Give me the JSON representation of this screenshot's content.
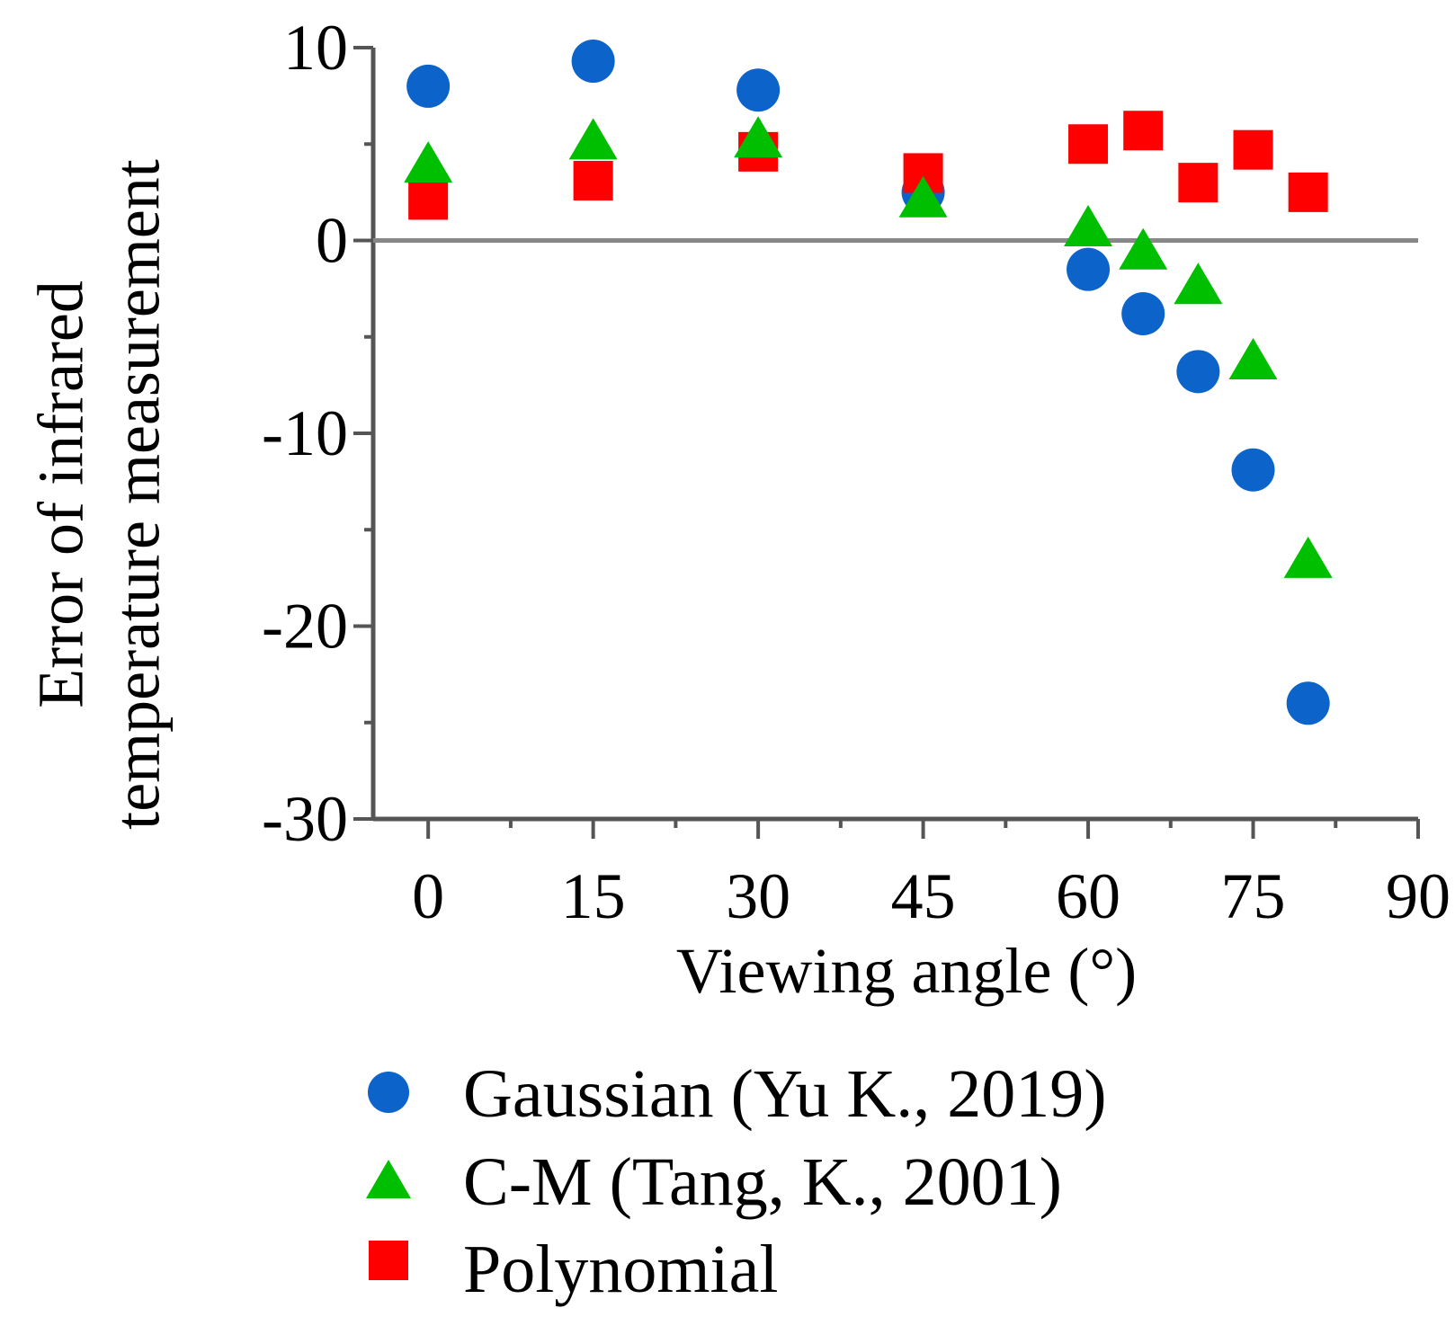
{
  "chart_data": {
    "type": "scatter",
    "title": "",
    "xlabel": "Viewing angle (°)",
    "ylabel_lines": [
      "Error of infrared",
      "temperature measurement"
    ],
    "xlim": [
      -5,
      90
    ],
    "ylim": [
      -30,
      10
    ],
    "x_ticks": [
      0,
      15,
      30,
      45,
      60,
      75,
      90
    ],
    "x_tick_labels": [
      "0",
      "15",
      "30",
      "45",
      "60",
      "75",
      "90"
    ],
    "y_ticks": [
      10,
      0,
      -10,
      -20,
      -30
    ],
    "y_tick_labels": [
      "10",
      "0",
      "-10",
      "-20",
      "-30"
    ],
    "x_minor_ticks": [
      7.5,
      22.5,
      37.5,
      52.5,
      67.5,
      82.5
    ],
    "y_minor_ticks": [
      5,
      -5,
      -15,
      -25
    ],
    "zero_line": true,
    "legend_position": "bottom",
    "series": [
      {
        "name": "Gaussian (Yu K., 2019)",
        "marker": "circle",
        "color": "#0c63c9",
        "x": [
          0,
          15,
          30,
          45,
          60,
          65,
          70,
          75,
          80
        ],
        "y": [
          8.0,
          9.3,
          7.8,
          2.5,
          -1.5,
          -3.8,
          -6.8,
          -11.9,
          -24.0
        ]
      },
      {
        "name": "C-M (Tang, K., 2001)",
        "marker": "triangle",
        "color": "#00bf00",
        "x": [
          0,
          15,
          30,
          45,
          60,
          65,
          70,
          75,
          80
        ],
        "y": [
          3.9,
          5.1,
          5.2,
          2.1,
          0.6,
          -0.6,
          -2.4,
          -6.3,
          -16.6
        ]
      },
      {
        "name": "Polynomial",
        "marker": "square",
        "color": "#ff0000",
        "x": [
          0,
          15,
          30,
          45,
          60,
          65,
          70,
          75,
          80
        ],
        "y": [
          2.1,
          3.1,
          4.6,
          3.5,
          5.0,
          5.7,
          3.0,
          4.7,
          2.5
        ]
      }
    ]
  }
}
